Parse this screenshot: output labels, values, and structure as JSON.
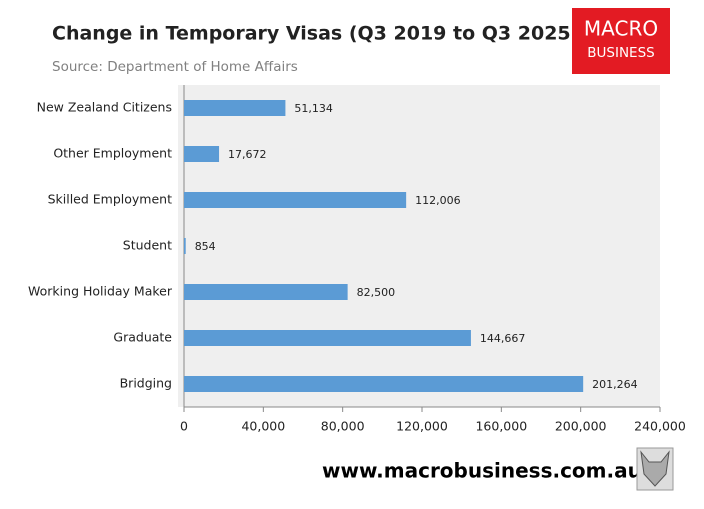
{
  "chart_data": {
    "type": "hbar",
    "title": "Change in Temporary Visas (Q3 2019 to Q3 2025)",
    "subtitle": "Source: Department of Home Affairs",
    "logo": [
      "MACRO",
      "BUSINESS"
    ],
    "footer": "www.macrobusiness.com.au",
    "categories": [
      "New Zealand Citizens",
      "Other Employment",
      "Skilled Employment",
      "Student",
      "Working Holiday Maker",
      "Graduate",
      "Bridging"
    ],
    "values": [
      51134,
      17672,
      112006,
      854,
      82500,
      144667,
      201264
    ],
    "value_labels": [
      "51,134",
      "17,672",
      "112,006",
      "854",
      "82,500",
      "144,667",
      "201,264"
    ],
    "color": "#5b9bd5",
    "xlim": [
      0,
      240000
    ],
    "xticks": [
      0,
      {
        "value": 40000,
        "label": "40,000"
      },
      {
        "value": 80000,
        "label": "80,000"
      },
      {
        "value": 120000,
        "label": "120,000"
      },
      {
        "value": 160000,
        "label": "160,000"
      },
      {
        "value": 200000,
        "label": "200,000"
      },
      {
        "value": 240000,
        "label": "240,000"
      }
    ],
    "grid": false
  }
}
